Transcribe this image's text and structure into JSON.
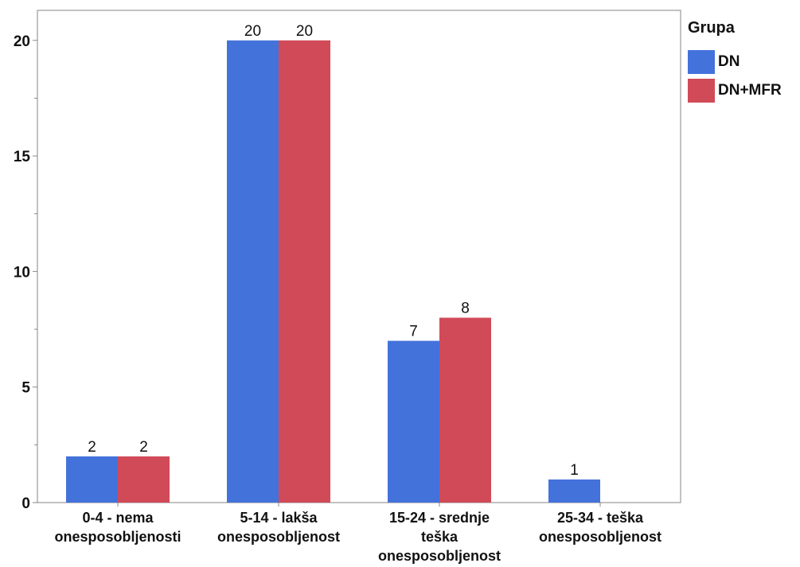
{
  "chart_data": {
    "type": "bar",
    "title": "",
    "xlabel": "",
    "ylabel": "",
    "ylim": [
      0,
      21.3
    ],
    "yticks": [
      0,
      5,
      10,
      15,
      20
    ],
    "categories": [
      [
        "0-4 - nema",
        "onesposobljenosti"
      ],
      [
        "5-14 - lakša",
        "onesposobljenost"
      ],
      [
        "15-24 - srednje",
        "teška",
        "onesposobljenost"
      ],
      [
        "25-34 - teška",
        "onesposobljenost"
      ]
    ],
    "series": [
      {
        "name": "DN",
        "color": "#4472db",
        "values": [
          2,
          20,
          7,
          1
        ]
      },
      {
        "name": "DN+MFR",
        "color": "#d14a58",
        "values": [
          2,
          20,
          8,
          null
        ]
      }
    ],
    "legend": {
      "title": "Grupa",
      "placement": "right"
    },
    "grid": false
  }
}
